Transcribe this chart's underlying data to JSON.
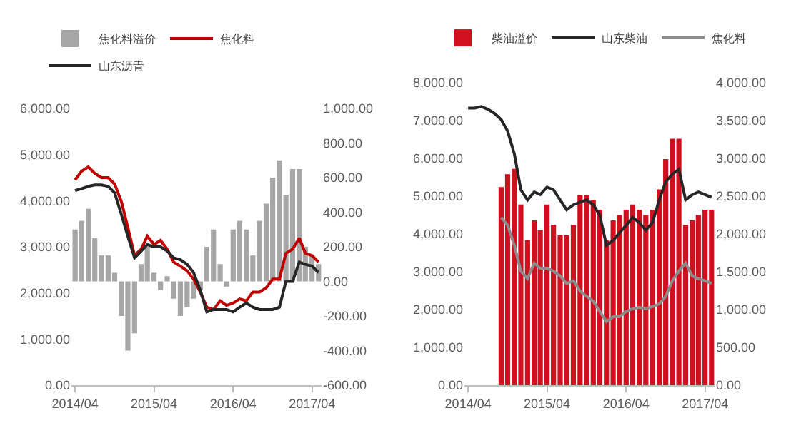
{
  "chart_data": [
    {
      "type": "bar",
      "legend": "top",
      "grid": false,
      "x": [
        "2014-04",
        "2014-05",
        "2014-06",
        "2014-07",
        "2014-08",
        "2014-09",
        "2014-10",
        "2014-11",
        "2014-12",
        "2015-01",
        "2015-02",
        "2015-03",
        "2015-04",
        "2015-05",
        "2015-06",
        "2015-07",
        "2015-08",
        "2015-09",
        "2015-10",
        "2015-11",
        "2015-12",
        "2016-01",
        "2016-02",
        "2016-03",
        "2016-04",
        "2016-05",
        "2016-06",
        "2016-07",
        "2016-08",
        "2016-09",
        "2016-10",
        "2016-11",
        "2016-12",
        "2017-01",
        "2017-02",
        "2017-03",
        "2017-04",
        "2017-05"
      ],
      "series": [
        {
          "name": "焦化料溢价",
          "axis": "y2",
          "color": "#a6a6a6",
          "values": [
            300,
            350,
            420,
            250,
            150,
            150,
            50,
            -200,
            -400,
            -300,
            100,
            200,
            50,
            -50,
            30,
            -100,
            -200,
            -150,
            -100,
            -50,
            200,
            300,
            100,
            -30,
            300,
            350,
            300,
            150,
            350,
            450,
            600,
            700,
            500,
            650,
            650,
            200,
            150,
            100
          ]
        },
        {
          "name": "焦化料",
          "type": "line",
          "color": "#c00000",
          "values": [
            4450,
            4640,
            4730,
            4590,
            4500,
            4500,
            4360,
            3980,
            3420,
            2810,
            2950,
            3230,
            3050,
            3140,
            2950,
            2670,
            2580,
            2480,
            2300,
            2020,
            1690,
            1640,
            1830,
            1730,
            1780,
            1870,
            1830,
            2020,
            2020,
            2110,
            2300,
            2300,
            2860,
            2950,
            3190,
            2860,
            2810,
            2670
          ]
        },
        {
          "name": "山东沥青",
          "type": "line",
          "color": "#262626",
          "values": [
            4220,
            4260,
            4310,
            4340,
            4340,
            4310,
            4170,
            3700,
            3230,
            2760,
            2910,
            3050,
            3000,
            3000,
            2910,
            2760,
            2720,
            2620,
            2440,
            2060,
            1590,
            1640,
            1640,
            1640,
            1590,
            1690,
            1780,
            1690,
            1640,
            1640,
            1640,
            1690,
            2250,
            2250,
            2670,
            2620,
            2580,
            2440
          ]
        }
      ],
      "xlim": [
        "2014-03-15",
        "2017-05-15"
      ],
      "xticks": [
        {
          "value": "2014-04",
          "label": "2014/04"
        },
        {
          "value": "2015-04",
          "label": "2015/04"
        },
        {
          "value": "2016-04",
          "label": "2016/04"
        },
        {
          "value": "2017-04",
          "label": "2017/04"
        }
      ],
      "ylim": [
        0,
        6000
      ],
      "yticks": [
        {
          "value": 0,
          "label": "0.00"
        },
        {
          "value": 1000,
          "label": "1,000.00"
        },
        {
          "value": 2000,
          "label": "2,000.00"
        },
        {
          "value": 3000,
          "label": "3,000.00"
        },
        {
          "value": 4000,
          "label": "4,000.00"
        },
        {
          "value": 5000,
          "label": "5,000.00"
        },
        {
          "value": 6000,
          "label": "6,000.00"
        }
      ],
      "y2lim": [
        -600,
        1000
      ],
      "y2ticks": [
        {
          "value": -600,
          "label": "-600.00"
        },
        {
          "value": -400,
          "label": "-400.00"
        },
        {
          "value": -200,
          "label": "-200.00"
        },
        {
          "value": 0,
          "label": "0.00"
        },
        {
          "value": 200,
          "label": "200.00"
        },
        {
          "value": 400,
          "label": "400.00"
        },
        {
          "value": 600,
          "label": "600.00"
        },
        {
          "value": 800,
          "label": "800.00"
        },
        {
          "value": 1000,
          "label": "1,000.00"
        }
      ]
    },
    {
      "type": "bar",
      "legend": "top",
      "grid": false,
      "x": [
        "2014-04",
        "2014-05",
        "2014-06",
        "2014-07",
        "2014-08",
        "2014-09",
        "2014-10",
        "2014-11",
        "2014-12",
        "2015-01",
        "2015-02",
        "2015-03",
        "2015-04",
        "2015-05",
        "2015-06",
        "2015-07",
        "2015-08",
        "2015-09",
        "2015-10",
        "2015-11",
        "2015-12",
        "2016-01",
        "2016-02",
        "2016-03",
        "2016-04",
        "2016-05",
        "2016-06",
        "2016-07",
        "2016-08",
        "2016-09",
        "2016-10",
        "2016-11",
        "2016-12",
        "2017-01",
        "2017-02",
        "2017-03",
        "2017-04",
        "2017-05"
      ],
      "series": [
        {
          "name": "柴油溢价",
          "axis": "y2",
          "color": "#d0101f",
          "values": [
            null,
            null,
            null,
            null,
            null,
            2620,
            2790,
            2860,
            2390,
            1920,
            2180,
            2050,
            2390,
            2120,
            1980,
            1980,
            2120,
            2520,
            2520,
            2450,
            2320,
            1920,
            2180,
            2250,
            2320,
            2390,
            2320,
            2250,
            2320,
            2590,
            2990,
            3260,
            3260,
            2120,
            2180,
            2250,
            2320,
            2320
          ]
        },
        {
          "name": "山东柴油",
          "type": "line",
          "color": "#262626",
          "values": [
            7330,
            7330,
            7370,
            7300,
            7190,
            7030,
            6720,
            6120,
            5170,
            4900,
            5110,
            5040,
            5240,
            5170,
            4900,
            4640,
            4770,
            4840,
            4900,
            4770,
            4500,
            3700,
            3830,
            4030,
            4230,
            4440,
            4300,
            4100,
            4300,
            4900,
            5380,
            5580,
            5710,
            4900,
            5040,
            5110,
            5040,
            4970
          ]
        },
        {
          "name": "焦化料",
          "type": "line",
          "color": "#8c8c8c",
          "values": [
            null,
            null,
            null,
            null,
            null,
            4440,
            4230,
            3700,
            3020,
            2820,
            3230,
            3090,
            3090,
            3020,
            2890,
            2690,
            2760,
            2490,
            2350,
            2220,
            1950,
            1680,
            1810,
            1810,
            1950,
            2020,
            2060,
            2020,
            2080,
            2150,
            2350,
            2760,
            3020,
            3230,
            2890,
            2820,
            2760,
            2690
          ]
        }
      ],
      "xlim": [
        "2014-03-15",
        "2017-05-15"
      ],
      "xticks": [
        {
          "value": "2014-04",
          "label": "2014/04"
        },
        {
          "value": "2015-04",
          "label": "2015/04"
        },
        {
          "value": "2016-04",
          "label": "2016/04"
        },
        {
          "value": "2017-04",
          "label": "2017/04"
        }
      ],
      "ylim": [
        0,
        8000
      ],
      "yticks": [
        {
          "value": 0,
          "label": "0.00"
        },
        {
          "value": 1000,
          "label": "1,000.00"
        },
        {
          "value": 2000,
          "label": "2,000.00"
        },
        {
          "value": 3000,
          "label": "3,000.00"
        },
        {
          "value": 4000,
          "label": "4,000.00"
        },
        {
          "value": 5000,
          "label": "5,000.00"
        },
        {
          "value": 6000,
          "label": "6,000.00"
        },
        {
          "value": 7000,
          "label": "7,000.00"
        },
        {
          "value": 8000,
          "label": "8,000.00"
        }
      ],
      "y2lim": [
        0,
        4000
      ],
      "y2ticks": [
        {
          "value": 0,
          "label": "0.00"
        },
        {
          "value": 500,
          "label": "500.00"
        },
        {
          "value": 1000,
          "label": "1,000.00"
        },
        {
          "value": 1500,
          "label": "1,500.00"
        },
        {
          "value": 2000,
          "label": "2,000.00"
        },
        {
          "value": 2500,
          "label": "2,500.00"
        },
        {
          "value": 3000,
          "label": "3,000.00"
        },
        {
          "value": 3500,
          "label": "3,500.00"
        },
        {
          "value": 4000,
          "label": "4,000.00"
        }
      ]
    }
  ]
}
